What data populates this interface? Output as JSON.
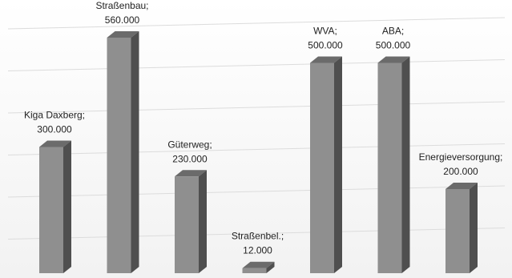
{
  "chart_data": {
    "type": "bar",
    "style": "3d-column",
    "categories": [
      "Kiga Daxberg",
      "Straßenbau",
      "Güterweg",
      "Straßenbel.",
      "WVA",
      "ABA",
      "Energieversorgung"
    ],
    "value_labels": [
      "300.000",
      "560.000",
      "230.000",
      "12.000",
      "500.000",
      "500.000",
      "200.000"
    ],
    "values": [
      300000,
      560000,
      230000,
      12000,
      500000,
      500000,
      200000
    ],
    "title": "",
    "xlabel": "",
    "ylabel": "",
    "ylim": [
      0,
      600000
    ],
    "grid": true,
    "legend": "none",
    "colors": {
      "bar_front": "#8f8f8f",
      "bar_side": "#4f4f4f",
      "bar_top": "#6b6b6b",
      "grid": "#dcdcdc"
    }
  }
}
